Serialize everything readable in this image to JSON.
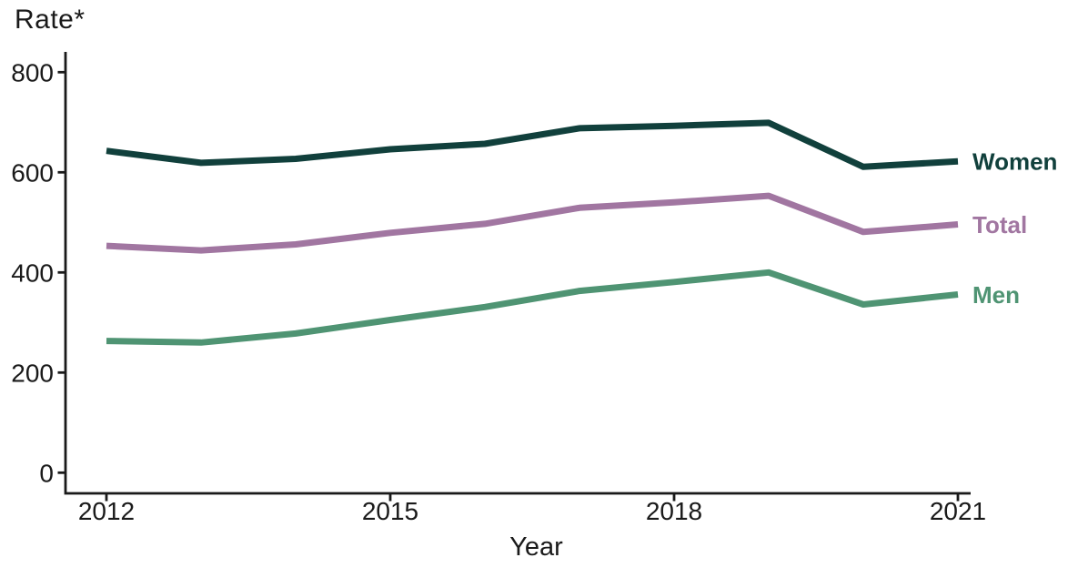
{
  "title": "Rate*",
  "xlabel": "Year",
  "chart_data": {
    "type": "line",
    "x": [
      2012,
      2013,
      2014,
      2015,
      2016,
      2017,
      2018,
      2019,
      2020,
      2021
    ],
    "series": [
      {
        "name": "Women",
        "color": "#11403c",
        "values": [
          643,
          619,
          627,
          646,
          657,
          688,
          693,
          699,
          611,
          622
        ]
      },
      {
        "name": "Total",
        "color": "#a176a1",
        "values": [
          453,
          444,
          456,
          479,
          497,
          529,
          540,
          553,
          481,
          496
        ]
      },
      {
        "name": "Men",
        "color": "#4f9473",
        "values": [
          263,
          260,
          278,
          305,
          331,
          363,
          381,
          400,
          336,
          356
        ]
      }
    ],
    "title": "Rate*",
    "xlabel": "Year",
    "ylabel": "Rate*",
    "xlim": [
      2012,
      2021
    ],
    "ylim": [
      0,
      800
    ],
    "xticks": [
      2012,
      2015,
      2018,
      2021
    ],
    "yticks": [
      0,
      200,
      400,
      600,
      800
    ],
    "grid": false,
    "legend_position": "right-end-labels",
    "axis_color": "#1a1a1a"
  }
}
